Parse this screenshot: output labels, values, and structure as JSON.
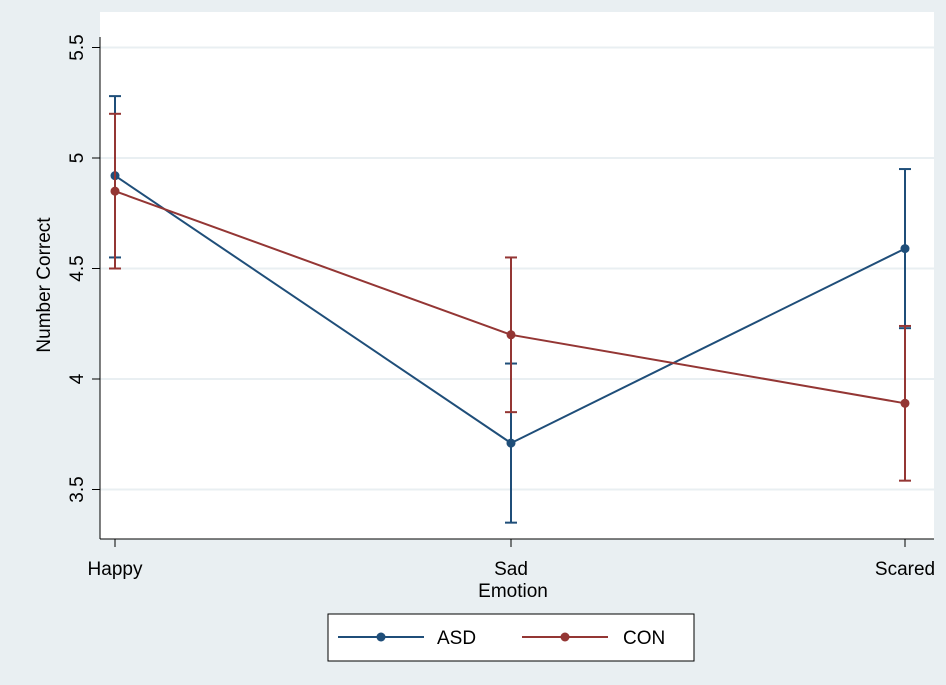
{
  "chart_data": {
    "type": "line",
    "title": "",
    "xlabel": "Emotion",
    "ylabel": "Number Correct",
    "categories": [
      "Happy",
      "Sad",
      "Scared"
    ],
    "ylim": [
      3.3,
      5.6
    ],
    "yticks": [
      3.5,
      4,
      4.5,
      5,
      5.5
    ],
    "ytick_labels": [
      "3.5",
      "4",
      "4.5",
      "5",
      "5.5"
    ],
    "grid": true,
    "legend_position": "bottom-center",
    "series": [
      {
        "name": "ASD",
        "color": "#1f4e79",
        "values": [
          4.92,
          3.71,
          4.59
        ],
        "ci_low": [
          4.55,
          3.35,
          4.23
        ],
        "ci_high": [
          5.28,
          4.07,
          4.95
        ]
      },
      {
        "name": "CON",
        "color": "#943634",
        "values": [
          4.85,
          4.2,
          3.89
        ],
        "ci_low": [
          4.5,
          3.85,
          3.54
        ],
        "ci_high": [
          5.2,
          4.55,
          4.24
        ]
      }
    ],
    "colors": {
      "outer_background": "#e9eff2",
      "plot_background": "#ffffff",
      "grid": "#e9eff2"
    }
  }
}
